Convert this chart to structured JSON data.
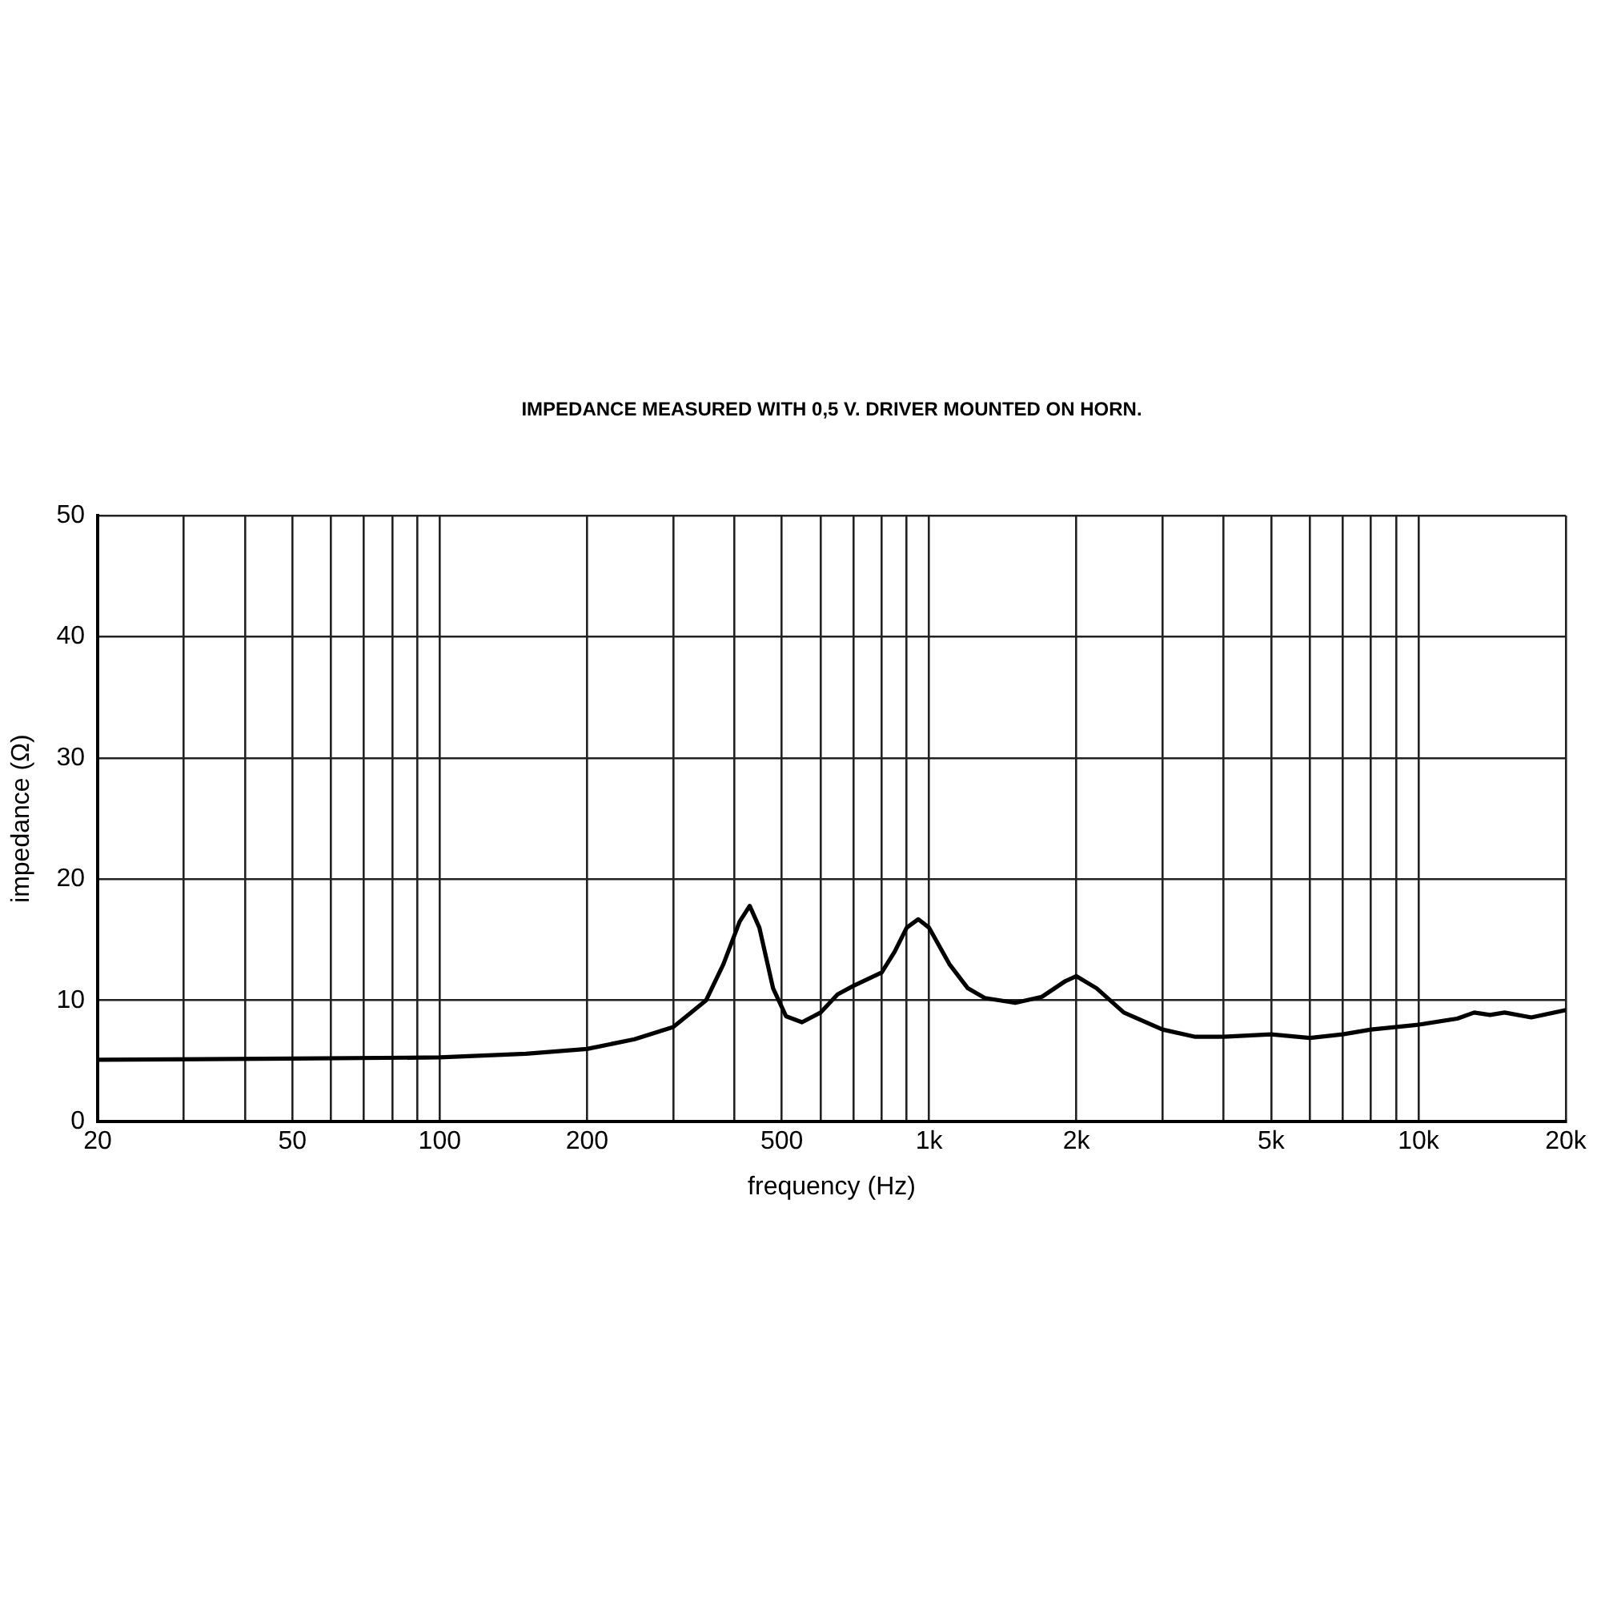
{
  "chart_data": {
    "type": "line",
    "title": "IMPEDANCE MEASURED WITH 0,5 V. DRIVER MOUNTED ON HORN.",
    "xlabel": "frequency (Hz)",
    "ylabel": "impedance (Ω)",
    "log": "x",
    "grid": true,
    "legend": false,
    "marker": "none",
    "line_style": "solid",
    "xlim": [
      20,
      20000
    ],
    "ylim": [
      0,
      50
    ],
    "xticks": [
      20,
      {
        "value": 30,
        "label": null
      },
      {
        "value": 40,
        "label": null
      },
      50,
      {
        "value": 60,
        "label": null
      },
      {
        "value": 70,
        "label": null
      },
      {
        "value": 80,
        "label": null
      },
      {
        "value": 90,
        "label": null
      },
      100,
      200,
      {
        "value": 300,
        "label": null
      },
      {
        "value": 400,
        "label": null
      },
      500,
      {
        "value": 600,
        "label": null
      },
      {
        "value": 700,
        "label": null
      },
      {
        "value": 800,
        "label": null
      },
      {
        "value": 900,
        "label": null
      },
      {
        "value": 1000,
        "label": "1k"
      },
      {
        "value": 2000,
        "label": "2k"
      },
      {
        "value": 3000,
        "label": null
      },
      {
        "value": 4000,
        "label": null
      },
      {
        "value": 5000,
        "label": "5k"
      },
      {
        "value": 6000,
        "label": null
      },
      {
        "value": 7000,
        "label": null
      },
      {
        "value": 8000,
        "label": null
      },
      {
        "value": 9000,
        "label": null
      },
      {
        "value": 10000,
        "label": "10k"
      },
      {
        "value": 20000,
        "label": "20k"
      }
    ],
    "yticks": [
      0,
      10,
      20,
      30,
      40,
      50
    ],
    "x": [
      20,
      50,
      100,
      150,
      200,
      250,
      300,
      350,
      380,
      410,
      430,
      450,
      480,
      510,
      550,
      600,
      650,
      700,
      800,
      850,
      900,
      950,
      1000,
      1100,
      1200,
      1300,
      1500,
      1700,
      1900,
      2000,
      2200,
      2500,
      3000,
      3500,
      4000,
      5000,
      6000,
      7000,
      8000,
      10000,
      12000,
      13000,
      14000,
      15000,
      17000,
      20000
    ],
    "series": [
      {
        "color": "#000000",
        "values": [
          5.1,
          5.2,
          5.3,
          5.6,
          6.0,
          6.8,
          7.8,
          10,
          13,
          16.5,
          17.8,
          16,
          11,
          8.7,
          8.2,
          9,
          10.5,
          11.2,
          12.3,
          14,
          16,
          16.7,
          16,
          13,
          11,
          10.2,
          9.8,
          10.3,
          11.6,
          12,
          11,
          9,
          7.6,
          7.0,
          7.0,
          7.2,
          6.9,
          7.2,
          7.6,
          8.0,
          8.5,
          9.0,
          8.8,
          9.0,
          8.6,
          9.2
        ]
      }
    ]
  }
}
